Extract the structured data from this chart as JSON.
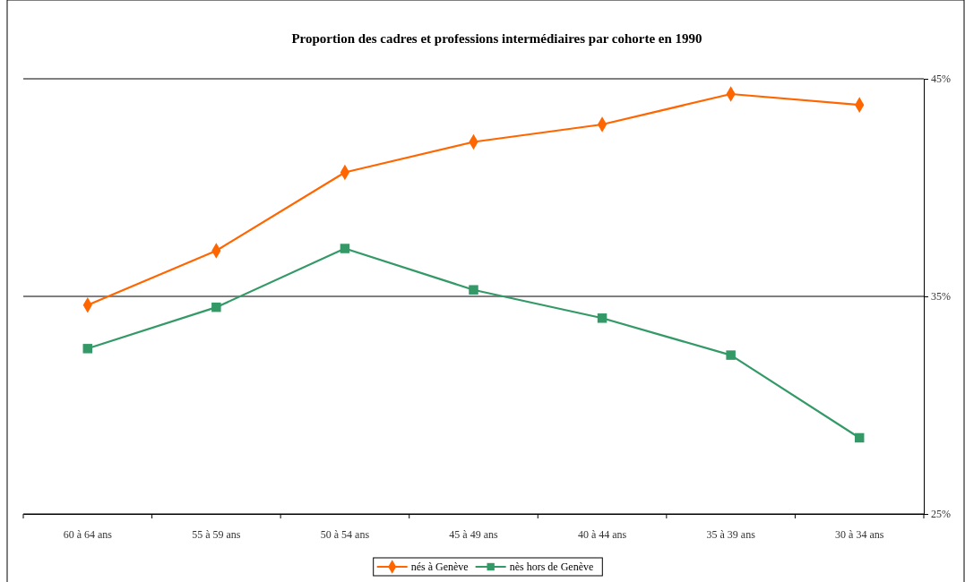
{
  "chart_data": {
    "type": "line",
    "title": "Proportion des cadres et professions intermédiaires par cohorte en 1990",
    "categories": [
      "60 à 64 ans",
      "55 à 59 ans",
      "50 à 54 ans",
      "45 à 49 ans",
      "40 à 44 ans",
      "35 à 39 ans",
      "30 à 34 ans"
    ],
    "series": [
      {
        "name": "nés à Genève",
        "color": "#ff6600",
        "marker": "diamond",
        "values": [
          34.6,
          37.1,
          40.7,
          42.1,
          42.9,
          44.3,
          43.8
        ]
      },
      {
        "name": "nès hors de Genève",
        "color": "#339966",
        "marker": "square",
        "values": [
          32.6,
          34.5,
          37.2,
          35.3,
          34.0,
          32.3,
          28.5
        ]
      }
    ],
    "ylim": [
      25,
      45
    ],
    "yticks": [
      {
        "value": 25,
        "label": "25%"
      },
      {
        "value": 35,
        "label": "35%"
      },
      {
        "value": 45,
        "label": "45%"
      }
    ],
    "grid": "y",
    "legend": "bottom",
    "line_style": "solid"
  }
}
